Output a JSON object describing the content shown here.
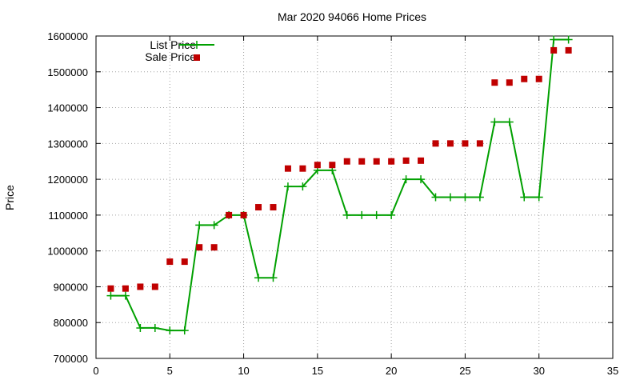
{
  "chart_data": {
    "type": "line",
    "title": "Mar 2020 94066 Home Prices",
    "xlabel": "",
    "ylabel": "Price",
    "xlim": [
      0,
      35
    ],
    "ylim": [
      700000,
      1600000
    ],
    "xticks": [
      0,
      5,
      10,
      15,
      20,
      25,
      30,
      35
    ],
    "yticks": [
      700000,
      800000,
      900000,
      1000000,
      1100000,
      1200000,
      1300000,
      1400000,
      1500000,
      1600000
    ],
    "grid": true,
    "legend_position": "top-left",
    "series": [
      {
        "name": "List Price",
        "style": "line-with-plus-markers",
        "color": "#00a000",
        "x": [
          1,
          2,
          3,
          4,
          5,
          6,
          7,
          8,
          9,
          10,
          11,
          12,
          13,
          14,
          15,
          16,
          17,
          18,
          19,
          20,
          21,
          22,
          23,
          24,
          25,
          26,
          27,
          28,
          29,
          30,
          31,
          32
        ],
        "y": [
          875000,
          875000,
          785000,
          785000,
          778000,
          778000,
          1072000,
          1072000,
          1100000,
          1100000,
          925000,
          925000,
          1180000,
          1180000,
          1225000,
          1225000,
          1100000,
          1100000,
          1100000,
          1100000,
          1200000,
          1200000,
          1150000,
          1150000,
          1150000,
          1150000,
          1360000,
          1360000,
          1150000,
          1150000,
          1590000,
          1590000
        ]
      },
      {
        "name": "Sale Price",
        "style": "square-markers",
        "color": "#c00000",
        "x": [
          1,
          2,
          3,
          4,
          5,
          6,
          7,
          8,
          9,
          10,
          11,
          12,
          13,
          14,
          15,
          16,
          17,
          18,
          19,
          20,
          21,
          22,
          23,
          24,
          25,
          26,
          27,
          28,
          29,
          30,
          31,
          32
        ],
        "y": [
          895000,
          895000,
          900000,
          900000,
          970000,
          970000,
          1010000,
          1010000,
          1100000,
          1100000,
          1122000,
          1122000,
          1230000,
          1230000,
          1240000,
          1240000,
          1250000,
          1250000,
          1250000,
          1250000,
          1252000,
          1252000,
          1300000,
          1300000,
          1300000,
          1300000,
          1470000,
          1470000,
          1480000,
          1480000,
          1560000,
          1560000
        ]
      }
    ]
  }
}
